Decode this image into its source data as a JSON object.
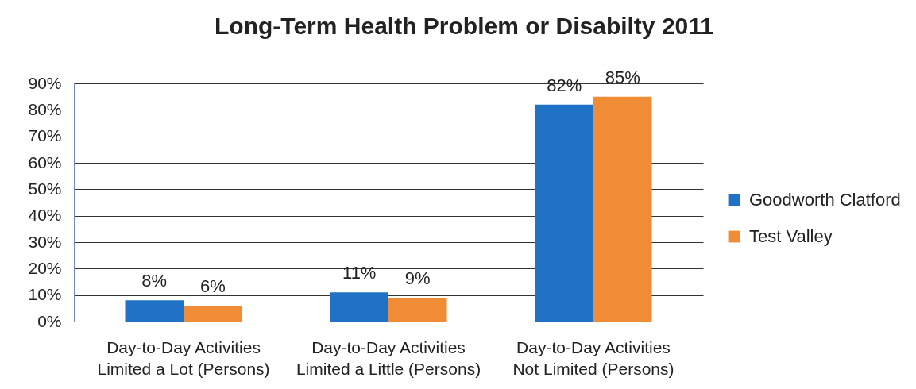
{
  "chart_data": {
    "type": "bar",
    "title": "Long-Term Health Problem or Disabilty 2011",
    "categories": [
      "Day-to-Day Activities Limited a Lot (Persons)",
      "Day-to-Day Activities Limited a Little (Persons)",
      "Day-to-Day Activities Not Limited (Persons)"
    ],
    "series": [
      {
        "name": "Goodworth Clatford",
        "color": "#1f72c6",
        "values": [
          8,
          11,
          82
        ],
        "value_labels": [
          "8%",
          "11%",
          "82%"
        ]
      },
      {
        "name": "Test Valley",
        "color": "#f08c36",
        "values": [
          6,
          9,
          85
        ],
        "value_labels": [
          "6%",
          "9%",
          "85%"
        ]
      }
    ],
    "ylim": [
      0,
      90
    ],
    "yticks": [
      {
        "value": 0,
        "label": "0%"
      },
      {
        "value": 10,
        "label": "10%"
      },
      {
        "value": 20,
        "label": "20%"
      },
      {
        "value": 30,
        "label": "30%"
      },
      {
        "value": 40,
        "label": "40%"
      },
      {
        "value": 50,
        "label": "50%"
      },
      {
        "value": 60,
        "label": "60%"
      },
      {
        "value": 70,
        "label": "70%"
      },
      {
        "value": 80,
        "label": "80%"
      },
      {
        "value": 90,
        "label": "90%"
      }
    ],
    "grid": "y",
    "legend": "right"
  }
}
